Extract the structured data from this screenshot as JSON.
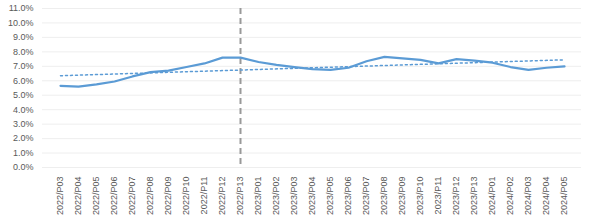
{
  "chart_data": {
    "type": "line",
    "categories": [
      "2022/P03",
      "2022/P04",
      "2022/P05",
      "2022/P06",
      "2022/P07",
      "2022/P08",
      "2022/P09",
      "2022/P10",
      "2022/P11",
      "2022/P12",
      "2022/P13",
      "2023/P01",
      "2023/P02",
      "2023/P03",
      "2023/P04",
      "2023/P05",
      "2023/P06",
      "2023/P07",
      "2023/P08",
      "2023/P09",
      "2023/P10",
      "2023/P11",
      "2023/P12",
      "2023/P13",
      "2024/P01",
      "2024/P02",
      "2024/P03",
      "2024/P04",
      "2024/P05"
    ],
    "series": [
      {
        "color": "#5b9bd5",
        "line_style": "solid",
        "values": [
          5.65,
          5.6,
          5.75,
          5.95,
          6.3,
          6.6,
          6.7,
          6.95,
          7.2,
          7.6,
          7.6,
          7.3,
          7.1,
          6.95,
          6.8,
          6.75,
          6.9,
          7.35,
          7.65,
          7.55,
          7.45,
          7.2,
          7.5,
          7.4,
          7.25,
          6.95,
          6.75,
          6.9,
          7.0
        ]
      }
    ],
    "trendline": {
      "categories": [
        "2022/P03",
        "2024/P05"
      ],
      "values": [
        6.35,
        7.45
      ],
      "color": "#5b9bd5",
      "line_style": "dotted"
    },
    "vline": {
      "category": "2022/P13",
      "color": "#999999",
      "line_style": "dashed"
    },
    "ylim": [
      0,
      11
    ],
    "yticks": [
      {
        "value": 0,
        "label": "0.0%"
      },
      {
        "value": 1,
        "label": "1.0%"
      },
      {
        "value": 2,
        "label": "2.0%"
      },
      {
        "value": 3,
        "label": "3.0%"
      },
      {
        "value": 4,
        "label": "4.0%"
      },
      {
        "value": 5,
        "label": "5.0%"
      },
      {
        "value": 6,
        "label": "6.0%"
      },
      {
        "value": 7,
        "label": "7.0%"
      },
      {
        "value": 8,
        "label": "8.0%"
      },
      {
        "value": 9,
        "label": "9.0%"
      },
      {
        "value": 10,
        "label": "10.0%"
      },
      {
        "value": 11,
        "label": "11.0%"
      }
    ],
    "grid": true
  }
}
